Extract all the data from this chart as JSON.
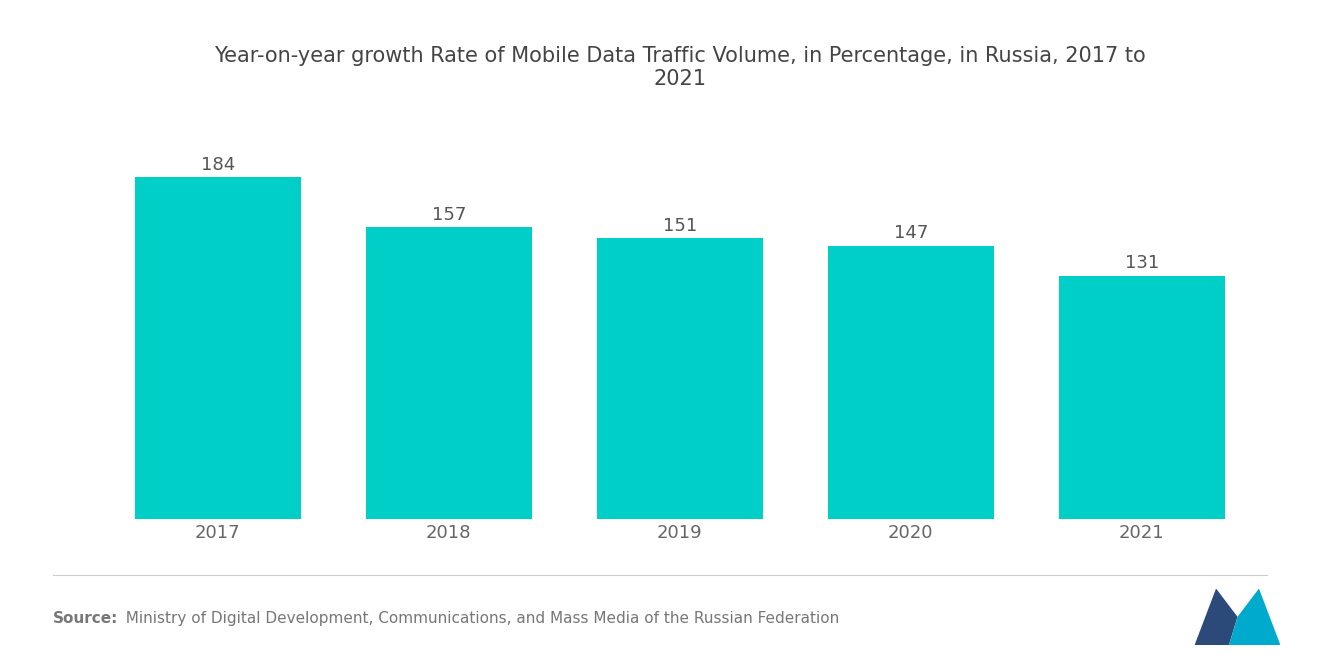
{
  "title": "Year-on-year growth Rate of Mobile Data Traffic Volume, in Percentage, in Russia, 2017 to\n2021",
  "categories": [
    "2017",
    "2018",
    "2019",
    "2020",
    "2021"
  ],
  "values": [
    184,
    157,
    151,
    147,
    131
  ],
  "bar_color": "#00CFC8",
  "background_color": "#ffffff",
  "source_bold": "Source:",
  "source_rest": "  Ministry of Digital Development, Communications, and Mass Media of the Russian Federation",
  "title_fontsize": 15,
  "label_fontsize": 13,
  "tick_fontsize": 13,
  "source_fontsize": 11,
  "ylim": [
    0,
    215
  ],
  "bar_width": 0.72,
  "value_label_color": "#555555",
  "tick_color": "#666666"
}
